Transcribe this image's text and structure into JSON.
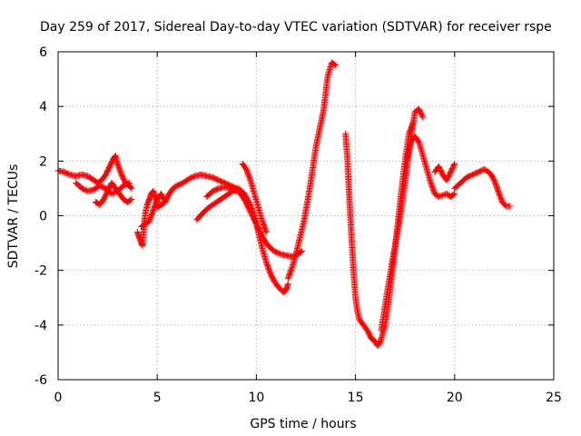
{
  "colors": {
    "series": "#ff0000",
    "grid": "#a0a0a0",
    "axis": "#000000",
    "background": "#ffffff"
  },
  "chart_data": {
    "type": "scatter",
    "title": "Day 259 of 2017, Sidereal Day-to-day VTEC variation (SDTVAR) for receiver rspe",
    "xlabel": "GPS time / hours",
    "ylabel": "SDTVAR / TECUs",
    "xlim": [
      0,
      25
    ],
    "ylim": [
      -6,
      6
    ],
    "xticks": [
      0,
      5,
      10,
      15,
      20,
      25
    ],
    "yticks": [
      -6,
      -4,
      -2,
      0,
      2,
      4,
      6
    ],
    "grid": true,
    "marker": "plus",
    "series": [
      {
        "name": "SDTVAR",
        "color": "#ff0000",
        "segments": [
          {
            "x": [
              0.0,
              0.3,
              0.6,
              0.9,
              1.2,
              1.5,
              1.8,
              2.0,
              2.2,
              2.4,
              2.6,
              2.8,
              2.9,
              3.0,
              3.2,
              3.4,
              3.6,
              3.7
            ],
            "y": [
              1.65,
              1.6,
              1.5,
              1.45,
              1.5,
              1.45,
              1.3,
              1.2,
              1.3,
              1.5,
              1.8,
              2.1,
              2.2,
              1.9,
              1.5,
              1.2,
              1.1,
              1.0
            ]
          },
          {
            "x": [
              0.9,
              1.2,
              1.5,
              1.8,
              2.1,
              2.4,
              2.7,
              3.0,
              3.3,
              3.6
            ],
            "y": [
              1.2,
              1.0,
              0.9,
              0.95,
              1.1,
              1.0,
              0.8,
              0.9,
              1.1,
              1.2
            ]
          },
          {
            "x": [
              1.9,
              2.1,
              2.3,
              2.5,
              2.7,
              2.9,
              3.1,
              3.3,
              3.5,
              3.7
            ],
            "y": [
              0.5,
              0.4,
              0.6,
              0.9,
              1.2,
              1.0,
              0.8,
              0.6,
              0.5,
              0.6
            ]
          },
          {
            "x": [
              4.0,
              4.1,
              4.2,
              4.25,
              4.3,
              4.35,
              4.4,
              4.5,
              4.6,
              4.7,
              4.8,
              4.9,
              5.0
            ],
            "y": [
              -0.6,
              -0.8,
              -1.0,
              -1.1,
              -0.7,
              -0.3,
              0.1,
              0.4,
              0.6,
              0.8,
              0.9,
              0.7,
              0.5
            ]
          },
          {
            "x": [
              4.2,
              4.4,
              4.6,
              4.8,
              5.0,
              5.2,
              5.4
            ],
            "y": [
              -0.4,
              -0.3,
              -0.2,
              0.2,
              0.6,
              0.8,
              0.5
            ]
          },
          {
            "x": [
              5.0,
              5.2,
              5.4,
              5.6,
              5.8,
              6.0,
              6.3,
              6.6,
              6.9,
              7.2,
              7.5,
              7.8,
              8.1,
              8.4,
              8.7,
              9.0,
              9.2,
              9.4,
              9.6,
              9.8,
              10.0,
              10.2,
              10.4,
              10.6,
              10.9,
              11.2,
              11.5,
              11.8,
              12.1,
              12.3
            ],
            "y": [
              0.3,
              0.4,
              0.5,
              0.8,
              1.0,
              1.1,
              1.2,
              1.35,
              1.45,
              1.5,
              1.45,
              1.4,
              1.3,
              1.2,
              1.1,
              1.0,
              0.8,
              0.6,
              0.3,
              0.0,
              -0.3,
              -0.6,
              -0.9,
              -1.1,
              -1.3,
              -1.4,
              -1.45,
              -1.5,
              -1.4,
              -1.3
            ]
          },
          {
            "x": [
              7.0,
              7.3,
              7.6,
              7.9,
              8.2,
              8.5,
              8.8,
              9.1,
              9.4,
              9.7,
              9.9,
              10.1,
              10.3,
              10.5,
              10.7,
              10.9,
              11.1,
              11.3,
              11.4,
              11.5,
              11.6
            ],
            "y": [
              -0.15,
              0.1,
              0.3,
              0.45,
              0.6,
              0.75,
              0.9,
              1.0,
              0.8,
              0.4,
              0.0,
              -0.6,
              -1.2,
              -1.7,
              -2.1,
              -2.4,
              -2.6,
              -2.75,
              -2.8,
              -2.7,
              -2.5
            ]
          },
          {
            "x": [
              7.5,
              7.8,
              8.1,
              8.4,
              8.7,
              9.0
            ],
            "y": [
              0.7,
              0.9,
              1.0,
              1.05,
              1.0,
              0.9
            ]
          },
          {
            "x": [
              9.3,
              9.5,
              9.7,
              9.9,
              10.1,
              10.3,
              10.5
            ],
            "y": [
              1.9,
              1.7,
              1.3,
              0.8,
              0.3,
              -0.2,
              -0.6
            ]
          },
          {
            "x": [
              11.6,
              11.8,
              12.0,
              12.2,
              12.4,
              12.6,
              12.8,
              13.0,
              13.2,
              13.4,
              13.6,
              13.8,
              14.0
            ],
            "y": [
              -2.3,
              -1.9,
              -1.4,
              -0.8,
              -0.2,
              0.6,
              1.5,
              2.5,
              3.2,
              3.9,
              5.1,
              5.6,
              5.5
            ]
          },
          {
            "x": [
              14.5,
              14.6,
              14.7,
              14.8,
              14.9,
              15.0,
              15.1,
              15.2,
              15.4,
              15.6,
              15.8,
              16.0,
              16.1,
              16.2,
              16.3,
              16.5,
              16.7,
              16.9,
              17.1,
              17.3,
              17.5,
              17.7,
              17.9
            ],
            "y": [
              3.0,
              2.0,
              0.5,
              -0.8,
              -2.0,
              -3.0,
              -3.5,
              -3.8,
              -4.0,
              -4.2,
              -4.5,
              -4.6,
              -4.75,
              -4.7,
              -4.5,
              -4.0,
              -3.0,
              -1.8,
              -0.5,
              0.8,
              2.0,
              3.0,
              3.4
            ]
          },
          {
            "x": [
              16.3,
              16.6,
              16.9,
              17.2,
              17.5,
              17.8,
              18.0,
              18.2,
              18.4
            ],
            "y": [
              -4.2,
              -2.8,
              -1.5,
              -0.3,
              1.2,
              2.9,
              3.8,
              3.9,
              3.6
            ]
          },
          {
            "x": [
              17.6,
              17.8,
              18.0,
              18.2,
              18.4,
              18.6,
              18.8,
              19.0,
              19.2,
              19.4,
              19.6,
              19.8,
              20.0
            ],
            "y": [
              2.1,
              2.7,
              2.9,
              2.7,
              2.2,
              1.7,
              1.2,
              0.8,
              0.7,
              0.75,
              0.8,
              0.7,
              0.8
            ]
          },
          {
            "x": [
              19.0,
              19.2,
              19.4,
              19.6,
              19.8,
              20.0
            ],
            "y": [
              1.6,
              1.8,
              1.5,
              1.3,
              1.6,
              1.9
            ]
          },
          {
            "x": [
              20.0,
              20.3,
              20.6,
              20.9,
              21.2,
              21.5,
              21.8,
              22.0,
              22.2,
              22.4,
              22.6,
              22.8
            ],
            "y": [
              1.0,
              1.2,
              1.4,
              1.5,
              1.6,
              1.7,
              1.55,
              1.3,
              0.9,
              0.5,
              0.35,
              0.35
            ]
          }
        ]
      }
    ]
  }
}
